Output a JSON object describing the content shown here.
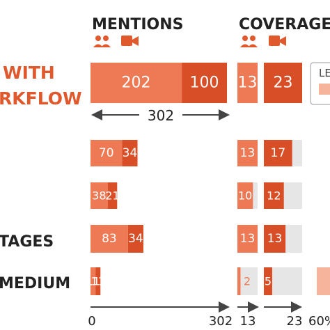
{
  "chart_data": {
    "type": "bar",
    "headers": {
      "mentions": "MENTIONS",
      "coverage": "COVERAGE"
    },
    "row_labels": [
      "WITH\nRKFLOW",
      "",
      "",
      "TAGES",
      "MEDIUM"
    ],
    "series": [
      {
        "values": [
          202,
          70,
          38,
          83,
          11
        ],
        "labels": [
          "202",
          "70",
          "38",
          "83",
          "11"
        ]
      },
      {
        "values": [
          100,
          34,
          21,
          34,
          11
        ],
        "labels": [
          "100",
          "34",
          "21",
          "34",
          "11"
        ]
      },
      {
        "values": [
          13,
          13,
          10,
          13,
          2
        ],
        "labels": [
          "13",
          "13",
          "10",
          "13",
          "2"
        ]
      },
      {
        "values": [
          23,
          17,
          12,
          13,
          5
        ],
        "labels": [
          "23",
          "17",
          "12",
          "13",
          "5"
        ]
      }
    ],
    "total_label": "302",
    "axis": {
      "mentions": {
        "min": 0,
        "max": 302,
        "ticks": [
          "0",
          "302"
        ]
      },
      "coverage_1": {
        "max": 13,
        "ticks": [
          "13"
        ]
      },
      "coverage_2": {
        "max": 23,
        "ticks": [
          "23"
        ]
      },
      "extra_tick": "60%"
    },
    "legend_partial": "LE",
    "colors": {
      "light": "#ee7a55",
      "dark": "#d84f27",
      "track": "#e6e6e6",
      "legend_fill": "#f6b49c",
      "text": "#222222",
      "axis": "#444444"
    }
  }
}
